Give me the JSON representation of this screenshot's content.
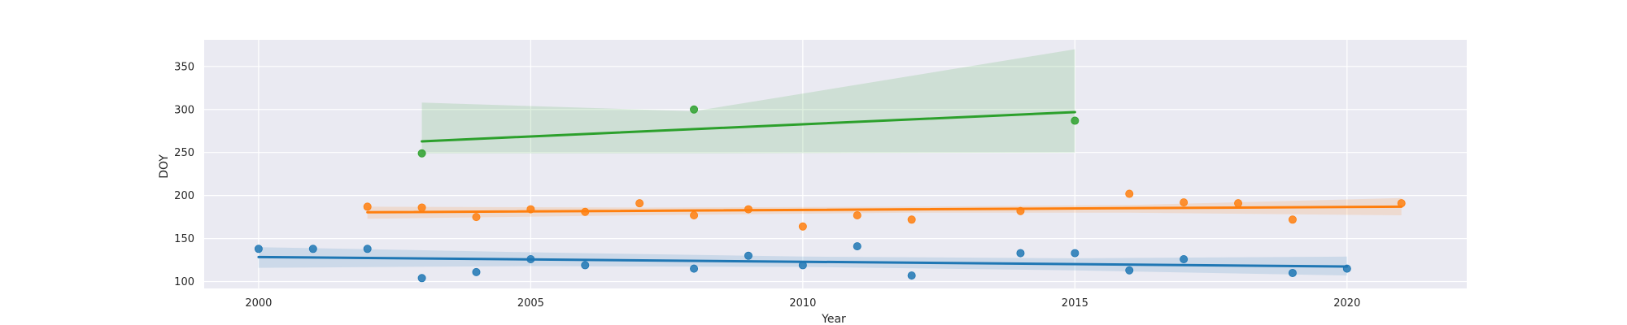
{
  "chart_data": {
    "type": "scatter",
    "xlabel": "Year",
    "ylabel": "DOY",
    "xlim": [
      1999,
      2022.2
    ],
    "ylim": [
      92,
      381
    ],
    "x_ticks": [
      2000,
      2005,
      2010,
      2015,
      2020
    ],
    "y_ticks": [
      100,
      150,
      200,
      250,
      300,
      350
    ],
    "grid": true,
    "background": "#eaeaf2",
    "series": [
      {
        "color": "#1f77b4",
        "points": [
          [
            2000,
            138
          ],
          [
            2001,
            138
          ],
          [
            2002,
            138
          ],
          [
            2003,
            104
          ],
          [
            2004,
            111
          ],
          [
            2005,
            126
          ],
          [
            2006,
            119
          ],
          [
            2008,
            115
          ],
          [
            2009,
            130
          ],
          [
            2010,
            119
          ],
          [
            2011,
            141
          ],
          [
            2012,
            107
          ],
          [
            2014,
            133
          ],
          [
            2015,
            133
          ],
          [
            2016,
            113
          ],
          [
            2017,
            126
          ],
          [
            2019,
            110
          ],
          [
            2020,
            115
          ]
        ],
        "trend": {
          "x": [
            2000,
            2020
          ],
          "y": [
            128.5,
            117.5
          ]
        },
        "band": {
          "x": [
            2000,
            2005,
            2010,
            2015,
            2020
          ],
          "upper": [
            140,
            134,
            129,
            127,
            129
          ],
          "lower": [
            116,
            118,
            117,
            113,
            107
          ]
        }
      },
      {
        "color": "#ff7f0e",
        "points": [
          [
            2002,
            187
          ],
          [
            2003,
            186
          ],
          [
            2004,
            175
          ],
          [
            2005,
            184
          ],
          [
            2006,
            181
          ],
          [
            2007,
            191
          ],
          [
            2008,
            177
          ],
          [
            2009,
            184
          ],
          [
            2010,
            164
          ],
          [
            2011,
            177
          ],
          [
            2012,
            172
          ],
          [
            2014,
            182
          ],
          [
            2016,
            202
          ],
          [
            2017,
            192
          ],
          [
            2018,
            191
          ],
          [
            2019,
            172
          ],
          [
            2021,
            191
          ]
        ],
        "trend": {
          "x": [
            2002,
            2021
          ],
          "y": [
            180.5,
            187
          ]
        },
        "band": {
          "x": [
            2002,
            2007,
            2012,
            2016,
            2021
          ],
          "upper": [
            187,
            186,
            187,
            189,
            197
          ],
          "lower": [
            173,
            177,
            180,
            180,
            177
          ]
        }
      },
      {
        "color": "#2ca02c",
        "points": [
          [
            2003,
            249
          ],
          [
            2008,
            300
          ],
          [
            2015,
            287
          ]
        ],
        "trend": {
          "x": [
            2003,
            2015
          ],
          "y": [
            263,
            297
          ]
        },
        "band": {
          "x": [
            2003,
            2008,
            2015
          ],
          "upper": [
            308,
            298,
            370
          ],
          "lower": [
            249,
            249,
            250
          ]
        }
      }
    ]
  }
}
